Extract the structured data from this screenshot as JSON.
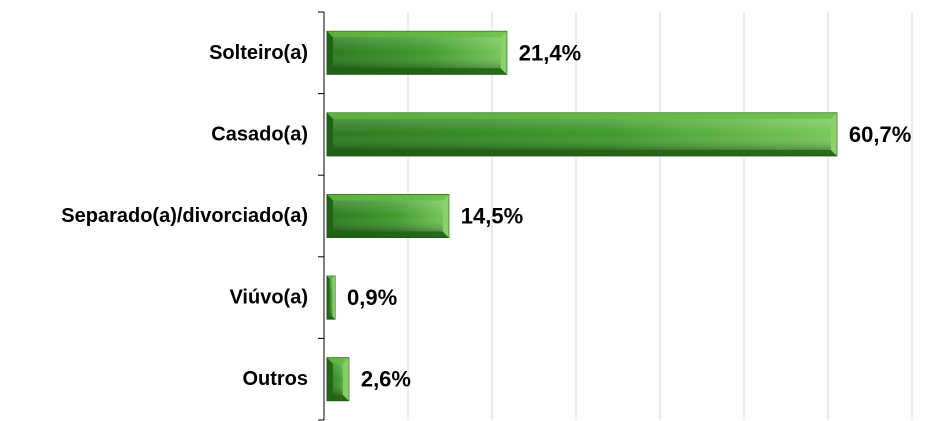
{
  "chart_data": {
    "type": "bar",
    "orientation": "horizontal",
    "categories": [
      "Solteiro(a)",
      "Casado(a)",
      "Separado(a)/divorciado(a)",
      "Viúvo(a)",
      "Outros"
    ],
    "values": [
      21.4,
      60.7,
      14.5,
      0.9,
      2.6
    ],
    "value_labels": [
      "21,4%",
      "60,7%",
      "14,5%",
      "0,9%",
      "2,6%"
    ],
    "xlim": [
      0,
      70
    ],
    "grid": "vertical",
    "legend": "none",
    "colors": {
      "bar_light": "#6fc24a",
      "bar_mid": "#3f9a2c",
      "bar_dark": "#1e5a14",
      "grid": "#d9d9d9",
      "axis": "#000000"
    }
  }
}
